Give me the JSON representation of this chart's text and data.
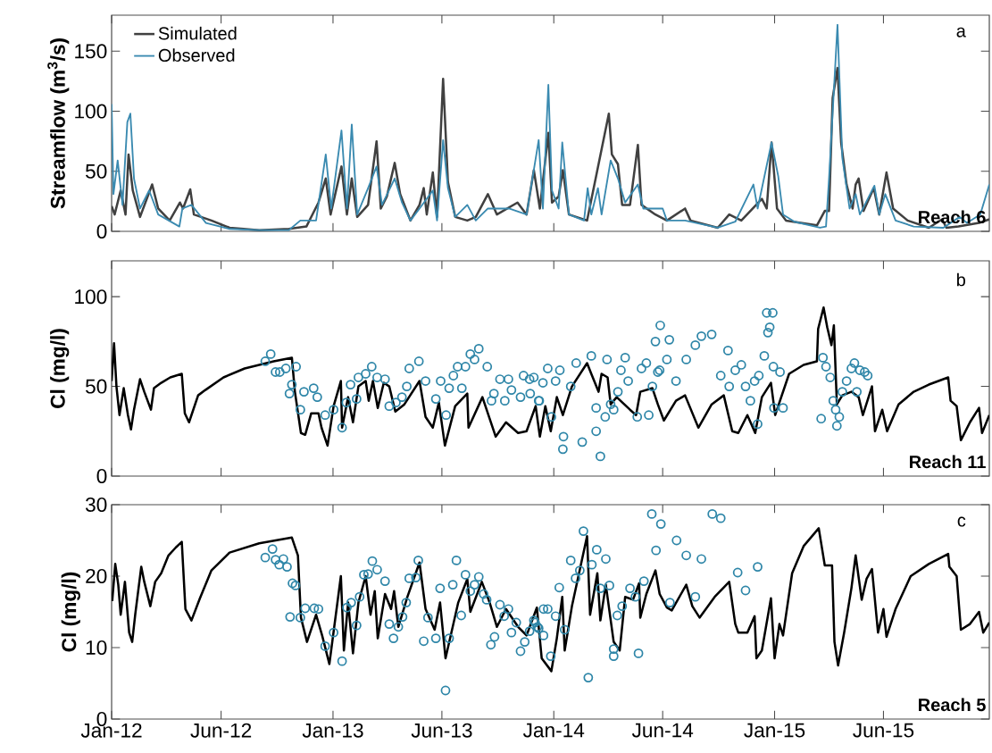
{
  "chart_data": [
    {
      "type": "line",
      "ylabel": "Streamflow (m$^{3}$/s)",
      "annotations": [
        "a",
        "Reach 6"
      ],
      "xlim": [
        "2012-01-01",
        "2015-12-22"
      ],
      "xticks": [
        {
          "value": "2012-01-01",
          "label": null
        },
        {
          "value": "2012-06-30",
          "label": null
        },
        {
          "value": "2013-01-01",
          "label": null
        },
        {
          "value": "2013-06-30",
          "label": null
        },
        {
          "value": "2014-01-01",
          "label": null
        },
        {
          "value": "2014-06-30",
          "label": null
        },
        {
          "value": "2015-01-01",
          "label": null
        },
        {
          "value": "2015-06-30",
          "label": null
        }
      ],
      "ylim": [
        0,
        180
      ],
      "yticks": [
        0,
        50,
        100,
        150
      ],
      "tick_labels": "y",
      "legend": "top left",
      "series": [
        {
          "name": "Simulated",
          "color": "#404040",
          "x": [
            "2012-01-01",
            "2012-01-06",
            "2012-01-16",
            "2012-01-24",
            "2012-01-29",
            "2012-02-05",
            "2012-02-17",
            "2012-03-08",
            "2012-03-18",
            "2012-04-06",
            "2012-04-23",
            "2012-04-28",
            "2012-05-10",
            "2012-05-16",
            "2012-06-14",
            "2012-07-14",
            "2012-09-01",
            "2012-10-20",
            "2012-11-18",
            "2012-12-08",
            "2012-12-20",
            "2012-12-28",
            "2013-01-15",
            "2013-01-24",
            "2013-02-01",
            "2013-02-10",
            "2013-02-28",
            "2013-03-14",
            "2013-03-21",
            "2013-03-31",
            "2013-04-13",
            "2013-04-22",
            "2013-05-09",
            "2013-05-24",
            "2013-05-31",
            "2013-06-05",
            "2013-06-15",
            "2013-06-22",
            "2013-07-02",
            "2013-07-10",
            "2013-07-22",
            "2013-08-11",
            "2013-08-25",
            "2013-09-14",
            "2013-09-29",
            "2013-11-02",
            "2013-11-17",
            "2013-11-29",
            "2013-12-09",
            "2013-12-23",
            "2013-12-29",
            "2014-01-09",
            "2014-01-16",
            "2014-01-26",
            "2014-02-25",
            "2014-04-02",
            "2014-04-07",
            "2014-04-17",
            "2014-04-24",
            "2014-05-07",
            "2014-05-20",
            "2014-05-26",
            "2014-06-18",
            "2014-07-07",
            "2014-08-06",
            "2014-08-15",
            "2014-09-29",
            "2014-10-18",
            "2014-11-07",
            "2014-12-11",
            "2014-12-19",
            "2014-12-27",
            "2015-01-05",
            "2015-01-20",
            "2015-03-12",
            "2015-03-25",
            "2015-04-01",
            "2015-04-07",
            "2015-04-15",
            "2015-04-21",
            "2015-04-30",
            "2015-05-10",
            "2015-05-15",
            "2015-05-20",
            "2015-05-28",
            "2015-06-14",
            "2015-06-23",
            "2015-07-05",
            "2015-07-16",
            "2015-08-09",
            "2015-09-13",
            "2015-10-05",
            "2015-10-12",
            "2015-11-01",
            "2015-12-05",
            "2015-12-22"
          ],
          "values": [
            21,
            14,
            34,
            14,
            64,
            34,
            12,
            39,
            19,
            9,
            24,
            19,
            35,
            14,
            9,
            3,
            1,
            2,
            4,
            24,
            44,
            14,
            54,
            14,
            44,
            12,
            22,
            75,
            19,
            29,
            57,
            31,
            9,
            22,
            36,
            14,
            49,
            12,
            127,
            41,
            12,
            9,
            12,
            31,
            14,
            24,
            14,
            51,
            19,
            82,
            24,
            29,
            51,
            14,
            9,
            98,
            64,
            56,
            22,
            22,
            72,
            22,
            14,
            9,
            19,
            9,
            3,
            14,
            9,
            27,
            19,
            74,
            19,
            9,
            5,
            17,
            17,
            111,
            136,
            74,
            39,
            19,
            39,
            44,
            17,
            36,
            14,
            49,
            19,
            9,
            3,
            10,
            3,
            4,
            7,
            10
          ]
        },
        {
          "name": "Observed",
          "color": "#3a8ab0",
          "x": [
            "2012-01-01",
            "2012-01-04",
            "2012-01-11",
            "2012-01-19",
            "2012-01-27",
            "2012-02-01",
            "2012-02-07",
            "2012-02-17",
            "2012-03-03",
            "2012-03-18",
            "2012-04-22",
            "2012-04-27",
            "2012-05-12",
            "2012-06-05",
            "2012-07-14",
            "2012-09-01",
            "2012-10-20",
            "2012-11-08",
            "2012-12-04",
            "2012-12-20",
            "2012-12-29",
            "2013-01-15",
            "2013-01-24",
            "2013-02-01",
            "2013-02-10",
            "2013-02-28",
            "2013-03-14",
            "2013-03-23",
            "2013-04-13",
            "2013-04-25",
            "2013-05-09",
            "2013-05-24",
            "2013-06-15",
            "2013-06-22",
            "2013-07-02",
            "2013-07-10",
            "2013-07-22",
            "2013-08-11",
            "2013-08-25",
            "2013-09-14",
            "2013-10-19",
            "2013-11-17",
            "2013-12-07",
            "2013-12-14",
            "2013-12-23",
            "2013-12-29",
            "2014-01-09",
            "2014-01-15",
            "2014-01-26",
            "2014-02-20",
            "2014-02-26",
            "2014-03-04",
            "2014-03-15",
            "2014-03-21",
            "2014-04-05",
            "2014-04-17",
            "2014-04-29",
            "2014-05-20",
            "2014-05-29",
            "2014-06-30",
            "2014-07-07",
            "2014-08-06",
            "2014-09-29",
            "2014-10-28",
            "2014-11-27",
            "2014-12-04",
            "2014-12-27",
            "2015-01-07",
            "2015-01-15",
            "2015-02-03",
            "2015-03-17",
            "2015-03-27",
            "2015-04-01",
            "2015-04-15",
            "2015-04-23",
            "2015-05-05",
            "2015-05-15",
            "2015-05-22",
            "2015-06-15",
            "2015-06-23",
            "2015-07-03",
            "2015-07-20",
            "2015-08-19",
            "2015-10-07",
            "2015-11-03",
            "2015-11-15",
            "2015-12-07",
            "2015-12-22"
          ],
          "values": [
            106,
            31,
            59,
            22,
            91,
            98,
            44,
            19,
            34,
            14,
            4,
            19,
            22,
            7,
            2,
            1,
            1,
            9,
            9,
            64,
            19,
            84,
            19,
            89,
            14,
            36,
            54,
            22,
            44,
            24,
            9,
            19,
            34,
            9,
            76,
            36,
            12,
            22,
            9,
            19,
            19,
            14,
            76,
            19,
            122,
            34,
            19,
            74,
            14,
            9,
            36,
            14,
            36,
            14,
            59,
            44,
            24,
            39,
            19,
            19,
            9,
            9,
            3,
            8,
            39,
            19,
            74,
            46,
            14,
            8,
            3,
            4,
            44,
            172,
            61,
            19,
            31,
            14,
            38,
            14,
            31,
            9,
            4,
            3,
            12,
            7,
            14,
            39
          ]
        }
      ]
    },
    {
      "type": "line",
      "ylabel": "Cl (mg/l)",
      "annotations": [
        "b",
        "Reach 11"
      ],
      "xlim": [
        "2012-01-01",
        "2015-12-22"
      ],
      "xticks": [
        {
          "value": "2012-01-01",
          "label": null
        },
        {
          "value": "2012-06-30",
          "label": null
        },
        {
          "value": "2013-01-01",
          "label": null
        },
        {
          "value": "2013-06-30",
          "label": null
        },
        {
          "value": "2014-01-01",
          "label": null
        },
        {
          "value": "2014-06-30",
          "label": null
        },
        {
          "value": "2015-01-01",
          "label": null
        },
        {
          "value": "2015-06-30",
          "label": null
        }
      ],
      "ylim": [
        0,
        120
      ],
      "yticks": [
        0,
        50,
        100
      ],
      "tick_labels": "y",
      "series": [
        {
          "color": "#000000",
          "x": [
            "2012-01-01",
            "2012-01-05",
            "2012-01-09",
            "2012-01-14",
            "2012-01-21",
            "2012-01-28",
            "2012-02-02",
            "2012-02-07",
            "2012-02-17",
            "2012-02-24",
            "2012-03-06",
            "2012-03-11",
            "2012-03-23",
            "2012-04-07",
            "2012-04-26",
            "2012-05-01",
            "2012-05-08",
            "2012-05-23",
            "2012-06-04",
            "2012-07-04",
            "2012-08-08",
            "2012-09-25",
            "2012-10-25",
            "2012-10-30",
            "2012-11-09",
            "2012-11-16",
            "2012-11-26",
            "2012-12-08",
            "2012-12-13",
            "2012-12-23",
            "2013-01-02",
            "2013-01-14",
            "2013-01-16",
            "2013-01-26",
            "2013-02-03",
            "2013-02-12",
            "2013-02-24",
            "2013-03-01",
            "2013-03-08",
            "2013-03-16",
            "2013-03-26",
            "2013-04-04",
            "2013-04-14",
            "2013-04-29",
            "2013-05-24",
            "2013-06-03",
            "2013-06-15",
            "2013-06-25",
            "2013-07-05",
            "2013-07-22",
            "2013-08-11",
            "2013-08-13",
            "2013-09-05",
            "2013-09-27",
            "2013-10-14",
            "2013-11-03",
            "2013-11-17",
            "2013-12-02",
            "2013-12-09",
            "2013-12-18",
            "2013-12-27",
            "2014-01-06",
            "2014-01-16",
            "2014-01-31",
            "2014-02-25",
            "2014-03-04",
            "2014-03-16",
            "2014-03-21",
            "2014-03-31",
            "2014-04-05",
            "2014-04-15",
            "2014-05-07",
            "2014-05-17",
            "2014-05-24",
            "2014-06-13",
            "2014-06-22",
            "2014-07-02",
            "2014-07-22",
            "2014-08-06",
            "2014-08-28",
            "2014-09-19",
            "2014-10-09",
            "2014-10-23",
            "2014-11-02",
            "2014-11-17",
            "2014-11-30",
            "2014-12-11",
            "2014-12-26",
            "2015-01-02",
            "2015-01-25",
            "2015-02-18",
            "2015-03-12",
            "2015-03-14",
            "2015-03-23",
            "2015-03-29",
            "2015-04-05",
            "2015-04-09",
            "2015-04-14",
            "2015-04-23",
            "2015-05-08",
            "2015-05-20",
            "2015-05-27",
            "2015-06-11",
            "2015-06-16",
            "2015-06-28",
            "2015-07-06",
            "2015-07-25",
            "2015-08-19",
            "2015-09-13",
            "2015-10-15",
            "2015-10-19",
            "2015-10-29",
            "2015-11-05",
            "2015-11-20",
            "2015-12-05",
            "2015-12-10",
            "2015-12-22"
          ],
          "values": [
            53,
            74,
            50,
            34,
            49,
            34,
            26,
            37,
            54,
            47,
            37,
            49,
            52,
            55,
            57,
            35,
            30,
            45,
            48,
            55,
            60,
            64,
            66,
            47,
            24,
            23,
            35,
            35,
            27,
            17,
            39,
            53,
            27,
            44,
            30,
            50,
            53,
            42,
            53,
            38,
            52,
            50,
            36,
            40,
            53,
            33,
            27,
            41,
            17,
            39,
            46,
            27,
            44,
            22,
            30,
            24,
            25,
            39,
            22,
            39,
            25,
            44,
            34,
            50,
            63,
            57,
            47,
            57,
            55,
            40,
            44,
            37,
            34,
            47,
            49,
            40,
            31,
            42,
            45,
            27,
            40,
            45,
            25,
            24,
            34,
            24,
            44,
            52,
            34,
            57,
            62,
            64,
            82,
            94,
            83,
            73,
            84,
            40,
            45,
            47,
            44,
            34,
            50,
            25,
            37,
            25,
            40,
            47,
            51,
            55,
            42,
            39,
            20,
            30,
            38,
            24,
            34
          ]
        },
        {
          "type": "scatter",
          "marker": "circle",
          "color": "#2e86a8",
          "x": [
            "2012-09-11",
            "2012-09-20",
            "2012-09-28",
            "2012-10-05",
            "2012-10-15",
            "2012-10-21",
            "2012-10-25",
            "2012-11-01",
            "2012-11-08",
            "2012-11-14",
            "2012-11-30",
            "2012-12-06",
            "2012-12-19",
            "2013-01-02",
            "2013-01-16",
            "2013-01-23",
            "2013-01-30",
            "2013-02-09",
            "2013-02-12",
            "2013-02-24",
            "2013-03-06",
            "2013-03-15",
            "2013-03-28",
            "2013-04-04",
            "2013-04-15",
            "2013-04-25",
            "2013-05-03",
            "2013-05-07",
            "2013-05-23",
            "2013-06-03",
            "2013-06-20",
            "2013-06-28",
            "2013-07-07",
            "2013-07-12",
            "2013-07-19",
            "2013-07-26",
            "2013-08-02",
            "2013-08-08",
            "2013-08-16",
            "2013-08-23",
            "2013-08-30",
            "2013-09-13",
            "2013-09-20",
            "2013-09-24",
            "2013-10-04",
            "2013-10-12",
            "2013-10-18",
            "2013-10-23",
            "2013-11-07",
            "2013-11-12",
            "2013-11-22",
            "2013-11-23",
            "2013-11-29",
            "2013-12-07",
            "2013-12-08",
            "2013-12-14",
            "2013-12-22",
            "2013-12-28",
            "2014-01-04",
            "2014-01-11",
            "2014-01-16",
            "2014-01-17",
            "2014-01-29",
            "2014-02-07",
            "2014-02-17",
            "2014-03-04",
            "2014-03-12",
            "2014-03-12",
            "2014-03-19",
            "2014-03-27",
            "2014-03-30",
            "2014-04-05",
            "2014-04-10",
            "2014-04-17",
            "2014-04-22",
            "2014-04-29",
            "2014-05-04",
            "2014-05-19",
            "2014-05-26",
            "2014-06-03",
            "2014-06-07",
            "2014-06-13",
            "2014-06-18",
            "2014-06-22",
            "2014-06-25",
            "2014-06-26",
            "2014-07-07",
            "2014-07-11",
            "2014-07-22",
            "2014-08-08",
            "2014-08-23",
            "2014-09-02",
            "2014-09-19",
            "2014-10-04",
            "2014-10-16",
            "2014-10-18",
            "2014-10-28",
            "2014-11-07",
            "2014-11-14",
            "2014-11-22",
            "2014-11-29",
            "2014-12-04",
            "2014-12-06",
            "2014-12-15",
            "2014-12-19",
            "2014-12-21",
            "2014-12-24",
            "2014-12-29",
            "2014-12-30",
            "2014-12-31",
            "2015-01-10",
            "2015-01-15",
            "2015-03-19",
            "2015-03-22",
            "2015-03-27",
            "2015-04-03",
            "2015-04-08",
            "2015-04-12",
            "2015-04-14",
            "2015-04-18",
            "2015-04-23",
            "2015-04-30",
            "2015-05-08",
            "2015-05-13",
            "2015-05-17",
            "2015-05-22",
            "2015-05-30",
            "2015-06-04"
          ],
          "values": [
            64,
            68,
            58,
            58,
            60,
            46,
            51,
            61,
            37,
            47,
            49,
            44,
            34,
            37,
            27,
            41,
            51,
            43,
            55,
            57,
            61,
            55,
            54,
            39,
            41,
            44,
            50,
            60,
            64,
            53,
            43,
            53,
            34,
            49,
            56,
            61,
            49,
            61,
            68,
            65,
            71,
            61,
            42,
            46,
            54,
            42,
            54,
            48,
            44,
            56,
            54,
            46,
            55,
            42,
            42,
            52,
            60,
            33,
            53,
            59,
            15,
            22,
            50,
            63,
            19,
            67,
            38,
            25,
            11,
            33,
            65,
            40,
            37,
            47,
            59,
            66,
            53,
            33,
            60,
            63,
            34,
            50,
            75,
            58,
            59,
            84,
            65,
            76,
            53,
            65,
            73,
            78,
            79,
            56,
            70,
            50,
            59,
            62,
            50,
            42,
            53,
            29,
            56,
            67,
            91,
            80,
            83,
            91,
            61,
            38,
            58,
            38,
            32,
            66,
            61,
            55,
            42,
            37,
            28,
            33,
            47,
            53,
            60,
            63,
            47,
            59,
            58,
            56
          ]
        }
      ]
    },
    {
      "type": "line",
      "ylabel": "Cl (mg/l)",
      "annotations": [
        "c",
        "Reach 5"
      ],
      "xlim": [
        "2012-01-01",
        "2015-12-22"
      ],
      "xticks": [
        {
          "value": "2012-01-01",
          "label": "Jan-12"
        },
        {
          "value": "2012-06-30",
          "label": "Jun-12"
        },
        {
          "value": "2013-01-01",
          "label": "Jan-13"
        },
        {
          "value": "2013-06-30",
          "label": "Jun-13"
        },
        {
          "value": "2014-01-01",
          "label": "Jan-14"
        },
        {
          "value": "2014-06-30",
          "label": "Jun-14"
        },
        {
          "value": "2015-01-01",
          "label": "Jan-15"
        },
        {
          "value": "2015-06-30",
          "label": "Jun-15"
        }
      ],
      "ylim": [
        0,
        30
      ],
      "yticks": [
        0,
        10,
        20,
        30
      ],
      "series": [
        {
          "color": "#000000",
          "x": [
            "2012-01-02",
            "2012-01-07",
            "2012-01-12",
            "2012-01-16",
            "2012-01-23",
            "2012-01-30",
            "2012-02-04",
            "2012-02-09",
            "2012-02-19",
            "2012-02-24",
            "2012-03-05",
            "2012-03-13",
            "2012-03-23",
            "2012-04-04",
            "2012-04-16",
            "2012-04-26",
            "2012-05-02",
            "2012-05-12",
            "2012-05-26",
            "2012-06-14",
            "2012-07-14",
            "2012-09-01",
            "2012-10-25",
            "2012-11-04",
            "2012-11-09",
            "2012-11-19",
            "2012-12-04",
            "2012-12-14",
            "2012-12-26",
            "2013-01-14",
            "2013-01-19",
            "2013-01-26",
            "2013-02-03",
            "2013-02-12",
            "2013-02-24",
            "2013-03-04",
            "2013-03-11",
            "2013-03-16",
            "2013-03-28",
            "2013-04-07",
            "2013-04-12",
            "2013-04-19",
            "2013-05-04",
            "2013-05-24",
            "2013-06-03",
            "2013-06-18",
            "2013-06-27",
            "2013-07-06",
            "2013-07-27",
            "2013-08-11",
            "2013-08-16",
            "2013-09-04",
            "2013-09-17",
            "2013-09-29",
            "2013-10-14",
            "2013-11-03",
            "2013-11-17",
            "2013-12-04",
            "2013-12-12",
            "2013-12-28",
            "2014-01-06",
            "2014-01-15",
            "2014-01-19",
            "2014-01-31",
            "2014-02-25",
            "2014-03-02",
            "2014-03-14",
            "2014-03-19",
            "2014-03-28",
            "2014-04-10",
            "2014-04-20",
            "2014-04-29",
            "2014-05-12",
            "2014-05-22",
            "2014-05-24",
            "2014-06-03",
            "2014-06-18",
            "2014-06-25",
            "2014-07-07",
            "2014-07-15",
            "2014-08-08",
            "2014-08-18",
            "2014-08-30",
            "2014-09-24",
            "2014-10-18",
            "2014-10-28",
            "2014-11-02",
            "2014-11-17",
            "2014-11-29",
            "2014-12-02",
            "2014-12-11",
            "2014-12-26",
            "2015-01-01",
            "2015-01-09",
            "2015-01-15",
            "2015-01-30",
            "2015-02-18",
            "2015-03-15",
            "2015-03-25",
            "2015-04-06",
            "2015-04-10",
            "2015-04-16",
            "2015-04-26",
            "2015-05-08",
            "2015-05-15",
            "2015-05-25",
            "2015-06-02",
            "2015-06-11",
            "2015-06-21",
            "2015-06-30",
            "2015-07-05",
            "2015-07-20",
            "2015-08-14",
            "2015-09-13",
            "2015-10-15",
            "2015-10-17",
            "2015-10-29",
            "2015-11-05",
            "2015-11-20",
            "2015-12-05",
            "2015-12-12",
            "2015-12-22"
          ],
          "values": [
            16.5,
            21.7,
            18.8,
            14.6,
            19.2,
            12.1,
            10.8,
            14.6,
            21.3,
            19.2,
            15.8,
            19.2,
            20.4,
            22.9,
            24,
            24.8,
            15.4,
            13.8,
            16.9,
            20.8,
            23.3,
            24.6,
            25.4,
            22.9,
            14.2,
            10.8,
            14.6,
            11.7,
            7.7,
            20,
            9.6,
            16.3,
            9.2,
            16.3,
            20,
            14.6,
            17.9,
            11.3,
            17.5,
            15.4,
            17.9,
            12.9,
            17.1,
            21.9,
            15.4,
            12.5,
            16.3,
            8.5,
            16.3,
            19.6,
            15,
            19.2,
            16.3,
            12.9,
            15.4,
            12.9,
            11.7,
            15.6,
            8.5,
            6.7,
            11.3,
            17.1,
            9.6,
            15.8,
            25.6,
            14.6,
            20.4,
            13.8,
            18.8,
            10.8,
            9.6,
            17.1,
            16.7,
            19,
            14.2,
            17.5,
            20.8,
            17.5,
            15.6,
            15.2,
            18.8,
            15.8,
            14.2,
            17.1,
            19.2,
            13.3,
            12.1,
            12.1,
            14.4,
            8.5,
            9.6,
            16.9,
            8.5,
            13.3,
            11.7,
            20.4,
            24.2,
            26.7,
            21.5,
            21.5,
            10.8,
            7.5,
            12.1,
            18.3,
            22.9,
            16.7,
            19.6,
            21,
            12.1,
            15.4,
            11.5,
            15.4,
            20,
            21.7,
            23.1,
            21.3,
            20,
            12.5,
            13.3,
            15,
            12.1,
            13.5
          ]
        },
        {
          "type": "scatter",
          "marker": "circle",
          "color": "#2e86a8",
          "x": [
            "2012-09-11",
            "2012-09-23",
            "2012-09-28",
            "2012-10-04",
            "2012-10-11",
            "2012-10-17",
            "2012-10-22",
            "2012-10-26",
            "2012-10-31",
            "2012-11-08",
            "2012-11-16",
            "2012-12-01",
            "2012-12-08",
            "2012-12-19",
            "2013-01-02",
            "2013-01-16",
            "2013-01-24",
            "2013-01-31",
            "2013-02-09",
            "2013-02-14",
            "2013-02-21",
            "2013-02-28",
            "2013-03-07",
            "2013-03-15",
            "2013-03-28",
            "2013-04-04",
            "2013-04-11",
            "2013-04-19",
            "2013-04-26",
            "2013-05-02",
            "2013-05-07",
            "2013-05-18",
            "2013-05-22",
            "2013-05-31",
            "2013-06-07",
            "2013-06-20",
            "2013-06-27",
            "2013-07-06",
            "2013-07-12",
            "2013-07-18",
            "2013-07-24",
            "2013-08-01",
            "2013-08-08",
            "2013-08-16",
            "2013-08-23",
            "2013-08-30",
            "2013-09-07",
            "2013-09-12",
            "2013-09-19",
            "2013-09-25",
            "2013-10-04",
            "2013-10-11",
            "2013-10-18",
            "2013-10-23",
            "2013-10-31",
            "2013-11-07",
            "2013-11-14",
            "2013-11-22",
            "2013-11-29",
            "2013-12-01",
            "2013-12-05",
            "2013-12-07",
            "2013-12-15",
            "2013-12-15",
            "2013-12-22",
            "2013-12-27",
            "2014-01-04",
            "2014-01-10",
            "2014-01-19",
            "2014-01-29",
            "2014-02-06",
            "2014-02-13",
            "2014-02-19",
            "2014-02-27",
            "2014-03-05",
            "2014-03-13",
            "2014-03-19",
            "2014-03-28",
            "2014-04-03",
            "2014-04-10",
            "2014-04-10",
            "2014-04-16",
            "2014-04-24",
            "2014-05-07",
            "2014-05-16",
            "2014-05-21",
            "2014-05-30",
            "2014-06-12",
            "2014-06-19",
            "2014-06-27",
            "2014-07-12",
            "2014-07-23",
            "2014-08-08",
            "2014-08-23",
            "2014-09-02",
            "2014-09-20",
            "2014-10-04",
            "2014-11-01",
            "2014-11-14",
            "2014-12-04"
          ],
          "values": [
            22.6,
            23.8,
            22.3,
            21.6,
            22.4,
            21.3,
            14.3,
            19,
            18.7,
            14.2,
            15.5,
            15.5,
            15.4,
            10.2,
            12.1,
            8.1,
            15.6,
            16.3,
            13.1,
            17.1,
            20.2,
            20.3,
            22.1,
            20.9,
            19.3,
            13.3,
            11.3,
            12.9,
            14.3,
            16.3,
            19.7,
            19.8,
            22.2,
            10.9,
            14.2,
            11.3,
            18.3,
            4,
            11.3,
            18.8,
            22.2,
            14.5,
            20.2,
            17.9,
            18.8,
            19.9,
            17.5,
            16.7,
            10.4,
            11.5,
            16,
            14.4,
            15.4,
            12.1,
            13.5,
            9.5,
            10.8,
            12.3,
            13.8,
            13.5,
            12.9,
            12.7,
            11.7,
            15.4,
            15.4,
            8.8,
            14.4,
            18.4,
            12.5,
            22.2,
            19.7,
            20.8,
            26.3,
            5.8,
            21.6,
            23.7,
            18.3,
            22.4,
            18.7,
            9.8,
            8.8,
            14.5,
            15.8,
            18.3,
            17.1,
            9.2,
            19.3,
            28.7,
            23.6,
            27.3,
            16.3,
            25,
            22.9,
            17.1,
            22.4,
            28.7,
            28.1,
            20.5,
            18,
            21.3
          ]
        }
      ]
    }
  ]
}
